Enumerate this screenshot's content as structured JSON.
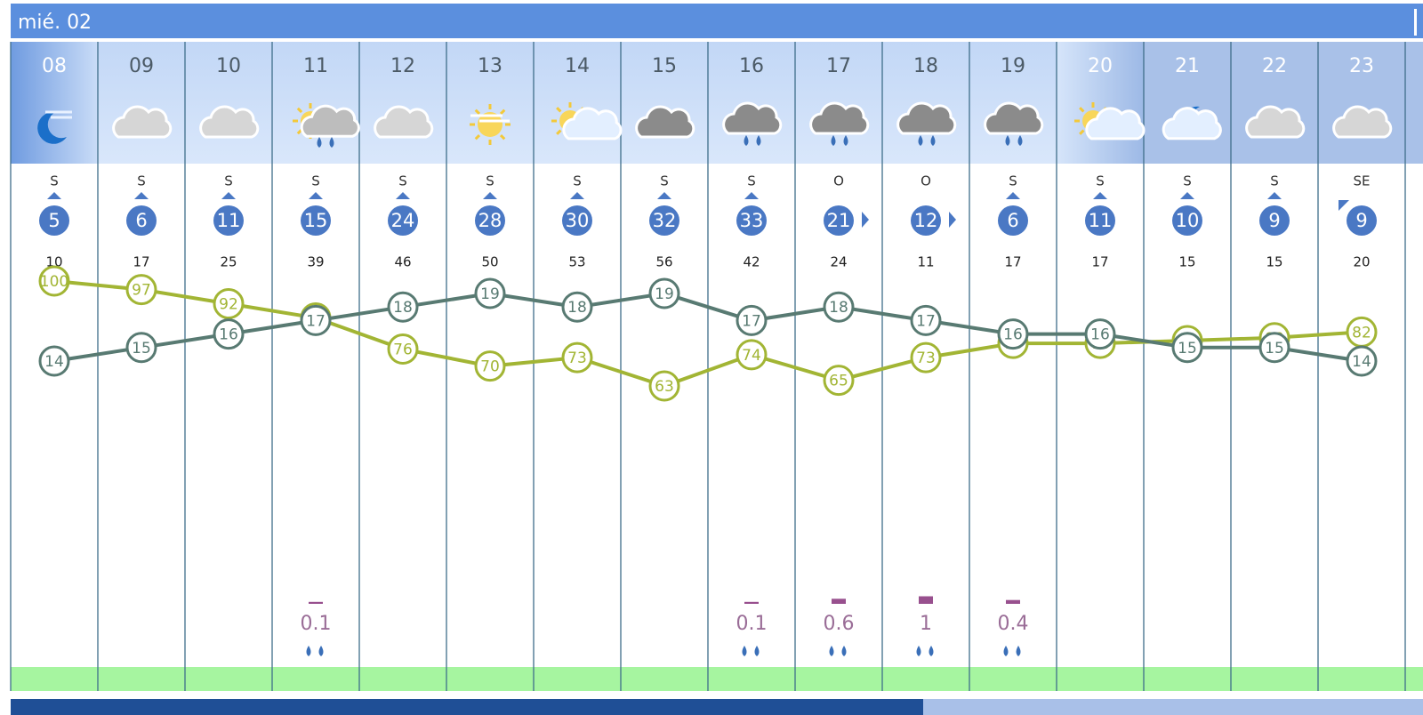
{
  "header": {
    "date": "mié. 02"
  },
  "hours": [
    {
      "hour": "08",
      "wind_dir": "S",
      "wind_speed": 5,
      "gust": 10,
      "temperature": 14,
      "humidity": 100,
      "precipitation": null
    },
    {
      "hour": "09",
      "wind_dir": "S",
      "wind_speed": 6,
      "gust": 17,
      "temperature": 15,
      "humidity": 97,
      "precipitation": null
    },
    {
      "hour": "10",
      "wind_dir": "S",
      "wind_speed": 11,
      "gust": 25,
      "temperature": 16,
      "humidity": 92,
      "precipitation": null
    },
    {
      "hour": "11",
      "wind_dir": "S",
      "wind_speed": 15,
      "gust": 39,
      "temperature": 17,
      "humidity": 87,
      "precipitation": 0.1
    },
    {
      "hour": "12",
      "wind_dir": "S",
      "wind_speed": 24,
      "gust": 46,
      "temperature": 18,
      "humidity": 76,
      "precipitation": null
    },
    {
      "hour": "13",
      "wind_dir": "S",
      "wind_speed": 28,
      "gust": 50,
      "temperature": 19,
      "humidity": 70,
      "precipitation": null
    },
    {
      "hour": "14",
      "wind_dir": "S",
      "wind_speed": 30,
      "gust": 53,
      "temperature": 18,
      "humidity": 73,
      "precipitation": null
    },
    {
      "hour": "15",
      "wind_dir": "S",
      "wind_speed": 32,
      "gust": 56,
      "temperature": 19,
      "humidity": 63,
      "precipitation": null
    },
    {
      "hour": "16",
      "wind_dir": "S",
      "wind_speed": 33,
      "gust": 42,
      "temperature": 17,
      "humidity": 74,
      "precipitation": 0.1
    },
    {
      "hour": "17",
      "wind_dir": "O",
      "wind_speed": 21,
      "gust": 24,
      "temperature": 18,
      "humidity": 65,
      "precipitation": 0.6
    },
    {
      "hour": "18",
      "wind_dir": "O",
      "wind_speed": 12,
      "gust": 11,
      "temperature": 17,
      "humidity": 73,
      "precipitation": 1
    },
    {
      "hour": "19",
      "wind_dir": "S",
      "wind_speed": 6,
      "gust": 17,
      "temperature": 16,
      "humidity": 78,
      "precipitation": 0.4
    },
    {
      "hour": "20",
      "wind_dir": "S",
      "wind_speed": 11,
      "gust": 17,
      "temperature": 16,
      "humidity": 78,
      "precipitation": null
    },
    {
      "hour": "21",
      "wind_dir": "S",
      "wind_speed": 10,
      "gust": 15,
      "temperature": 15,
      "humidity": 79,
      "precipitation": null
    },
    {
      "hour": "22",
      "wind_dir": "S",
      "wind_speed": 9,
      "gust": 15,
      "temperature": 15,
      "humidity": 80,
      "precipitation": null
    },
    {
      "hour": "23",
      "wind_dir": "SE",
      "wind_speed": 9,
      "gust": 20,
      "temperature": 14,
      "humidity": 82,
      "precipitation": null
    }
  ]
}
